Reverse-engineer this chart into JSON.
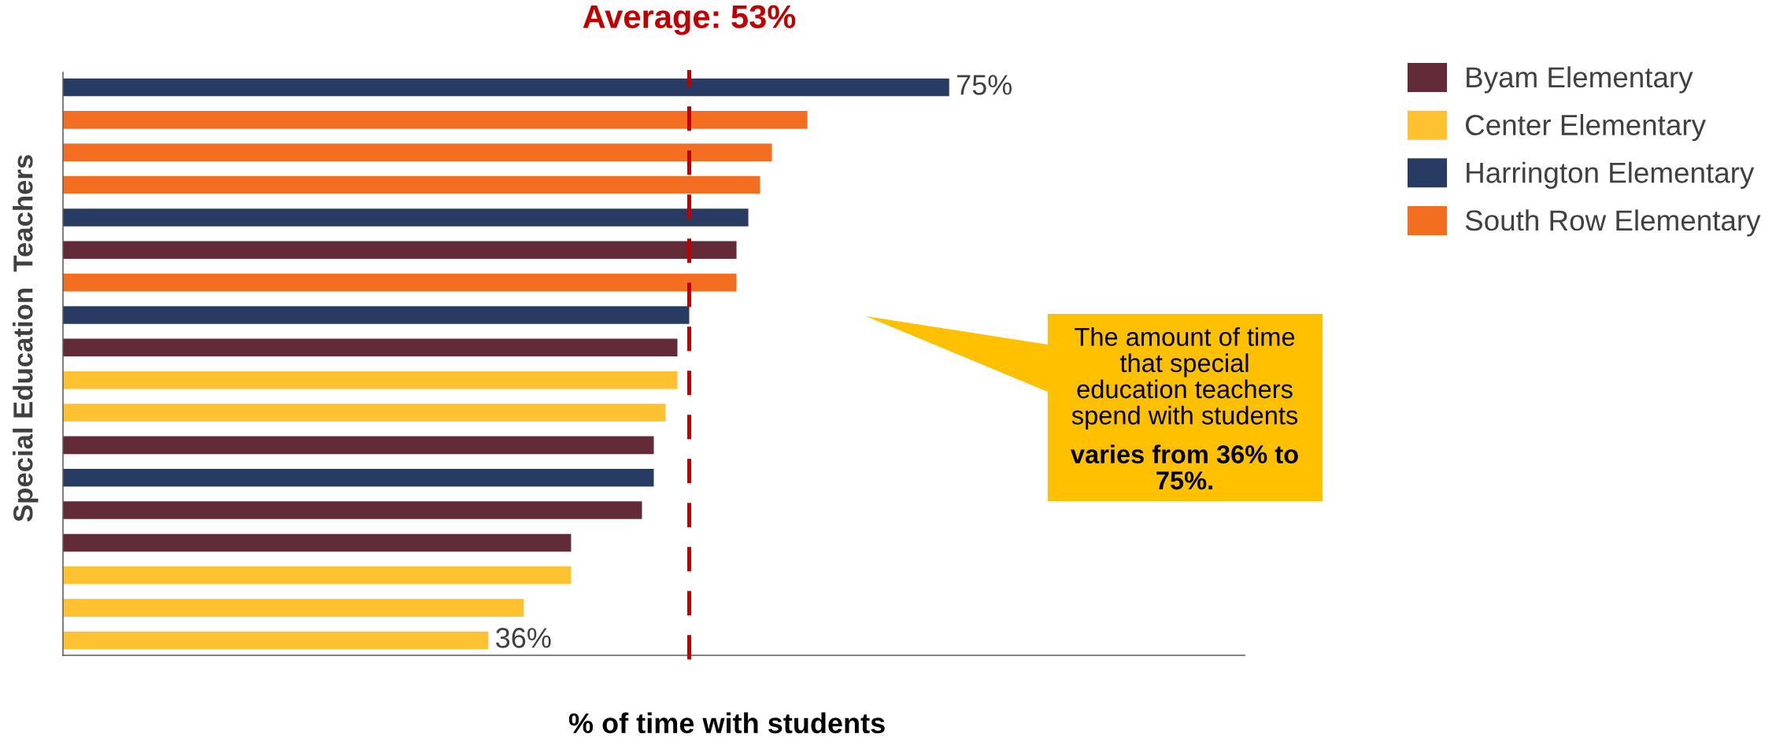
{
  "chart_data": {
    "type": "bar",
    "orientation": "horizontal",
    "stacked": true,
    "xlabel": "% of time with students",
    "ylabel": "Special Education  Teachers",
    "categories": [
      null,
      null,
      null,
      null,
      null,
      null,
      null,
      null,
      null,
      null,
      null,
      null,
      null,
      null,
      null,
      null,
      null,
      null
    ],
    "series": [
      {
        "name": "Byam Elementary",
        "color": "#632b38",
        "values": [
          null,
          null,
          null,
          null,
          null,
          57,
          null,
          null,
          52,
          null,
          null,
          50,
          null,
          49,
          43,
          null,
          null,
          null
        ]
      },
      {
        "name": "Center Elementary",
        "color": "#fec230",
        "values": [
          null,
          null,
          null,
          null,
          null,
          null,
          null,
          null,
          null,
          52,
          51,
          null,
          null,
          null,
          null,
          43,
          39,
          36
        ],
        "value_labels": [
          null,
          null,
          null,
          null,
          null,
          null,
          null,
          null,
          null,
          null,
          null,
          null,
          null,
          null,
          null,
          null,
          null,
          "36%"
        ]
      },
      {
        "name": "Harrington Elementary",
        "color": "#283c63",
        "values": [
          75,
          null,
          null,
          null,
          58,
          null,
          null,
          53,
          null,
          null,
          null,
          null,
          50,
          null,
          null,
          null,
          null,
          null
        ],
        "value_labels": [
          "75%",
          null,
          null,
          null,
          null,
          null,
          null,
          null,
          null,
          null,
          null,
          null,
          null,
          null,
          null,
          null,
          null,
          null
        ]
      },
      {
        "name": "South Row Elementary",
        "color": "#f36e21",
        "values": [
          null,
          63,
          60,
          59,
          null,
          null,
          57,
          null,
          null,
          null,
          null,
          null,
          null,
          null,
          null,
          null,
          null,
          null
        ]
      }
    ],
    "xlim": [
      0,
      100
    ],
    "ref_lines": [
      {
        "axis": "x",
        "value": 53,
        "label": "Average: 53%",
        "color": "#c00000",
        "line_style": "dashed"
      }
    ],
    "annotations": [
      "The amount of time that special education teachers spend with students",
      "varies from 36% to 75%."
    ],
    "legend": "top right",
    "tick_labels": false
  }
}
